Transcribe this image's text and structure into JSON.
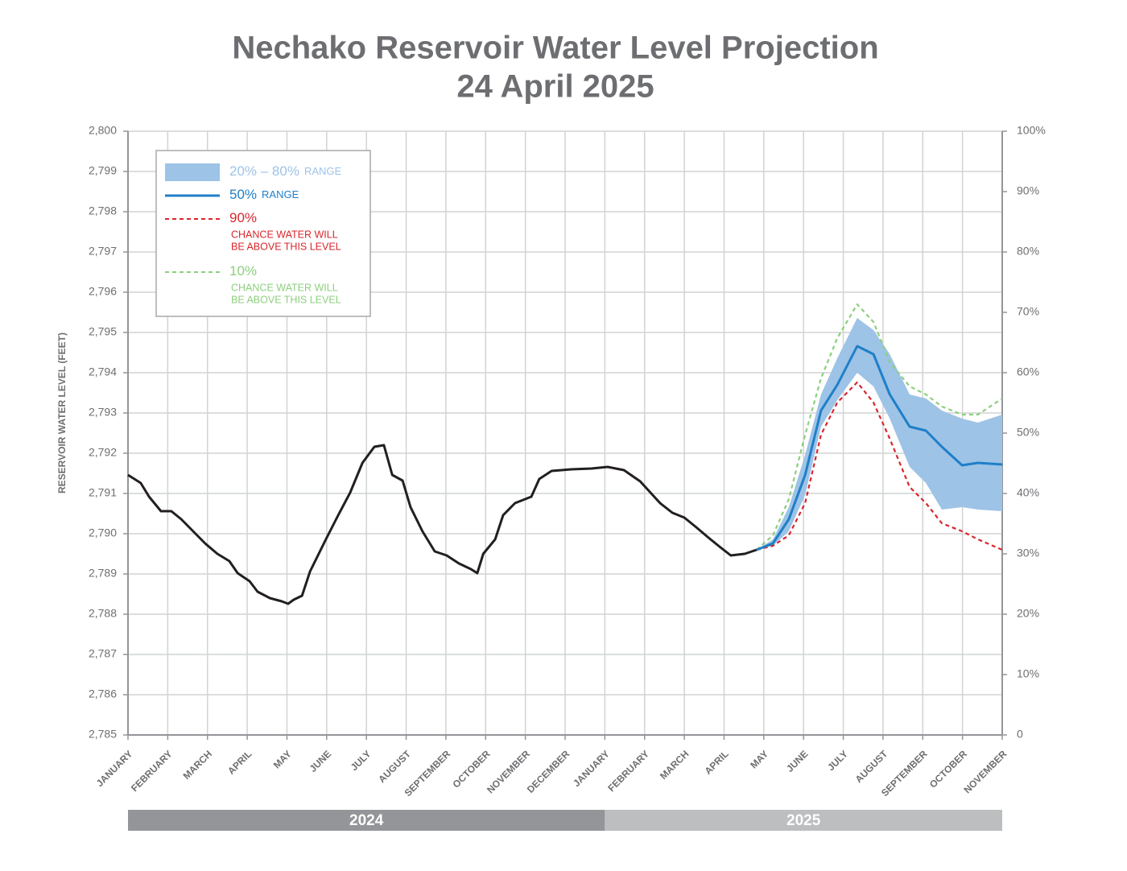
{
  "chart_data": {
    "type": "line",
    "title": "Nechako Reservoir Water Level Projection",
    "subtitle": "24 April 2025",
    "y_label": "RESERVOIR WATER LEVEL (FEET)",
    "xlim": [
      0,
      22
    ],
    "xticks": [
      {
        "value": 0,
        "label": "JANUARY"
      },
      {
        "value": 1,
        "label": "FEBRUARY"
      },
      {
        "value": 2,
        "label": "MARCH"
      },
      {
        "value": 3,
        "label": "APRIL"
      },
      {
        "value": 4,
        "label": "MAY"
      },
      {
        "value": 5,
        "label": "JUNE"
      },
      {
        "value": 6,
        "label": "JULY"
      },
      {
        "value": 7,
        "label": "AUGUST"
      },
      {
        "value": 8,
        "label": "SEPTEMBER"
      },
      {
        "value": 9,
        "label": "OCTOBER"
      },
      {
        "value": 10,
        "label": "NOVEMBER"
      },
      {
        "value": 11,
        "label": "DECEMBER"
      },
      {
        "value": 12,
        "label": "JANUARY"
      },
      {
        "value": 13,
        "label": "FEBRUARY"
      },
      {
        "value": 14,
        "label": "MARCH"
      },
      {
        "value": 15,
        "label": "APRIL"
      },
      {
        "value": 16,
        "label": "MAY"
      },
      {
        "value": 17,
        "label": "JUNE"
      },
      {
        "value": 18,
        "label": "JULY"
      },
      {
        "value": 19,
        "label": "AUGUST"
      },
      {
        "value": 20,
        "label": "SEPTEMBER"
      },
      {
        "value": 21,
        "label": "OCTOBER"
      },
      {
        "value": 22,
        "label": "NOVEMBER"
      }
    ],
    "years": [
      {
        "label": "2024",
        "start": 0,
        "end": 12,
        "color": "#939598"
      },
      {
        "label": "2025",
        "start": 12,
        "end": 22,
        "color": "#bcbec0"
      }
    ],
    "ylim": [
      2785,
      2800
    ],
    "yticks": [
      {
        "value": 2785,
        "label": "2,785"
      },
      {
        "value": 2786,
        "label": "2,786"
      },
      {
        "value": 2787,
        "label": "2,787"
      },
      {
        "value": 2788,
        "label": "2,788"
      },
      {
        "value": 2789,
        "label": "2,789"
      },
      {
        "value": 2790,
        "label": "2,790"
      },
      {
        "value": 2791,
        "label": "2,791"
      },
      {
        "value": 2792,
        "label": "2,792"
      },
      {
        "value": 2793,
        "label": "2,793"
      },
      {
        "value": 2794,
        "label": "2,794"
      },
      {
        "value": 2795,
        "label": "2,795"
      },
      {
        "value": 2796,
        "label": "2,796"
      },
      {
        "value": 2797,
        "label": "2,797"
      },
      {
        "value": 2798,
        "label": "2,798"
      },
      {
        "value": 2799,
        "label": "2,799"
      },
      {
        "value": 2800,
        "label": "2,800"
      }
    ],
    "y2lim": [
      0,
      100
    ],
    "y2ticks": [
      0,
      {
        "value": 10,
        "label": "10%"
      },
      {
        "value": 20,
        "label": "20%"
      },
      {
        "value": 30,
        "label": "30%"
      },
      {
        "value": 40,
        "label": "40%"
      },
      {
        "value": 50,
        "label": "50%"
      },
      {
        "value": 60,
        "label": "60%"
      },
      {
        "value": 70,
        "label": "70%"
      },
      {
        "value": 80,
        "label": "80%"
      },
      {
        "value": 90,
        "label": "90%"
      },
      {
        "value": 100,
        "label": "100%"
      }
    ],
    "grid": true,
    "legend": "top-left",
    "series": [
      {
        "kind": "line",
        "color": "#231f20",
        "x": [
          0,
          0.32,
          0.53,
          0.83,
          1.09,
          1.34,
          1.64,
          1.94,
          2.25,
          2.55,
          2.76,
          3.06,
          3.26,
          3.57,
          3.87,
          4.03,
          4.17,
          4.38,
          4.58,
          4.98,
          5.29,
          5.59,
          5.9,
          6.2,
          6.44,
          6.65,
          6.91,
          7.11,
          7.41,
          7.72,
          8.02,
          8.33,
          8.63,
          8.79,
          8.94,
          9.24,
          9.44,
          9.74,
          10.15,
          10.35,
          10.66,
          11.16,
          11.67,
          12.07,
          12.48,
          12.89,
          13.39,
          13.7,
          14.0,
          14.3,
          14.61,
          14.91,
          15.17,
          15.52,
          15.82
        ],
        "values": [
          2791.46,
          2791.26,
          2790.92,
          2790.56,
          2790.56,
          2790.36,
          2790.06,
          2789.76,
          2789.5,
          2789.32,
          2789.02,
          2788.82,
          2788.56,
          2788.4,
          2788.32,
          2788.26,
          2788.36,
          2788.46,
          2789.06,
          2789.86,
          2790.46,
          2791.02,
          2791.76,
          2792.16,
          2792.2,
          2791.46,
          2791.32,
          2790.66,
          2790.06,
          2789.56,
          2789.46,
          2789.26,
          2789.12,
          2789.02,
          2789.5,
          2789.86,
          2790.46,
          2790.76,
          2790.92,
          2791.36,
          2791.56,
          2791.6,
          2791.62,
          2791.66,
          2791.58,
          2791.3,
          2790.76,
          2790.52,
          2790.4,
          2790.16,
          2789.9,
          2789.66,
          2789.46,
          2789.5,
          2789.6
        ]
      },
      {
        "kind": "band",
        "name": "20% – 80%",
        "name_suffix": "RANGE",
        "color": "#9dc3e6",
        "x": [
          15.82,
          16.23,
          16.63,
          17.04,
          17.44,
          17.85,
          18.35,
          18.76,
          19.17,
          19.67,
          20.08,
          20.48,
          20.99,
          21.39,
          22
        ],
        "upper": [
          2789.6,
          2789.86,
          2790.66,
          2791.96,
          2793.46,
          2794.36,
          2795.36,
          2795.06,
          2794.46,
          2793.46,
          2793.36,
          2793.06,
          2792.86,
          2792.76,
          2792.96
        ],
        "lower": [
          2789.6,
          2789.7,
          2790.06,
          2790.96,
          2792.66,
          2793.32,
          2794.0,
          2793.66,
          2792.86,
          2791.66,
          2791.26,
          2790.6,
          2790.66,
          2790.6,
          2790.56
        ]
      },
      {
        "kind": "line",
        "name": "50%",
        "name_suffix": "RANGE",
        "color": "#1f7fc8",
        "x": [
          15.82,
          16.23,
          16.63,
          17.04,
          17.44,
          17.85,
          18.35,
          18.76,
          19.17,
          19.67,
          20.08,
          20.48,
          20.99,
          21.39,
          22
        ],
        "values": [
          2789.6,
          2789.76,
          2790.36,
          2791.46,
          2793.06,
          2793.7,
          2794.66,
          2794.46,
          2793.46,
          2792.66,
          2792.56,
          2792.16,
          2791.7,
          2791.76,
          2791.72
        ]
      },
      {
        "kind": "line",
        "dashed": true,
        "name": "90%",
        "description": [
          "CHANCE WATER WILL",
          "BE ABOVE THIS LEVEL"
        ],
        "color": "#d9262c",
        "x": [
          15.82,
          16.23,
          16.63,
          17.04,
          17.44,
          17.85,
          18.35,
          18.76,
          19.17,
          19.67,
          20.08,
          20.48,
          20.99,
          21.39,
          22
        ],
        "values": [
          2789.6,
          2789.7,
          2789.96,
          2790.76,
          2792.46,
          2793.26,
          2793.76,
          2793.26,
          2792.36,
          2791.16,
          2790.76,
          2790.26,
          2790.06,
          2789.86,
          2789.6
        ]
      },
      {
        "kind": "line",
        "dashed": true,
        "name": "10%",
        "description": [
          "CHANCE WATER WILL",
          "BE ABOVE THIS LEVEL"
        ],
        "color": "#8ccf7e",
        "x": [
          15.82,
          16.23,
          16.63,
          17.04,
          17.44,
          17.85,
          18.35,
          18.76,
          19.17,
          19.67,
          20.08,
          20.48,
          20.99,
          21.39,
          22
        ],
        "values": [
          2789.6,
          2789.96,
          2790.86,
          2792.46,
          2793.86,
          2794.86,
          2795.7,
          2795.26,
          2794.26,
          2793.66,
          2793.46,
          2793.16,
          2792.96,
          2792.96,
          2793.36
        ]
      }
    ]
  }
}
